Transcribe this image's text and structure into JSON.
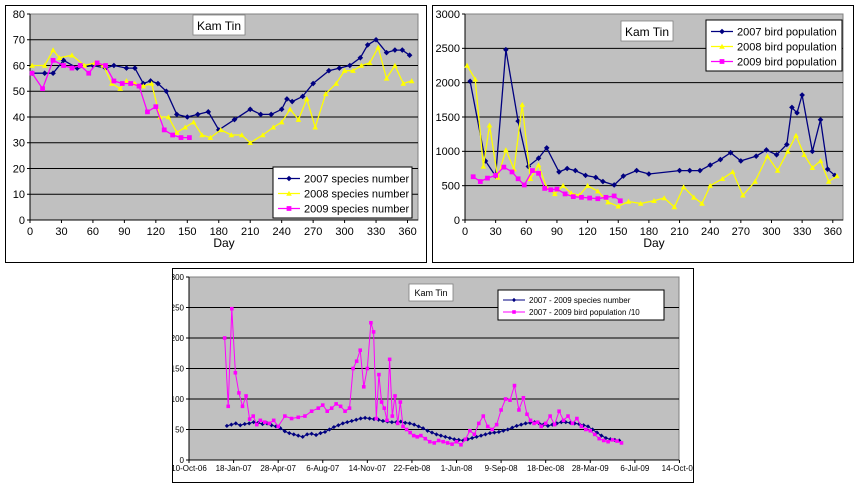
{
  "chart_data": [
    {
      "type": "line",
      "title": "Kam Tin",
      "xlabel": "Day",
      "ylabel": "",
      "xlim": [
        0,
        370
      ],
      "ylim": [
        0,
        80
      ],
      "xticks": [
        0,
        30,
        60,
        90,
        120,
        150,
        180,
        210,
        240,
        270,
        300,
        330,
        360
      ],
      "yticks": [
        0,
        10,
        20,
        30,
        40,
        50,
        60,
        70,
        80
      ],
      "grid": true,
      "legend_position": "bottom-right",
      "series": [
        {
          "name": "2007 species number",
          "color": "#000080",
          "marker": "diamond",
          "x": [
            2,
            14,
            22,
            32,
            45,
            60,
            72,
            80,
            92,
            100,
            108,
            115,
            122,
            130,
            140,
            150,
            160,
            170,
            180,
            195,
            210,
            220,
            230,
            240,
            245,
            250,
            260,
            270,
            285,
            295,
            305,
            315,
            322,
            330,
            340,
            348,
            355,
            362
          ],
          "y": [
            57,
            57,
            57,
            62,
            59,
            60,
            59,
            60,
            59,
            59,
            53,
            54,
            53,
            50,
            41,
            40,
            41,
            42,
            35,
            39,
            43,
            41,
            41,
            43,
            47,
            46,
            48,
            53,
            58,
            59,
            60,
            63,
            68,
            70,
            65,
            66,
            66,
            64
          ]
        },
        {
          "name": "2008 species number",
          "color": "#ffff00",
          "marker": "triangle",
          "x": [
            2,
            14,
            22,
            28,
            40,
            52,
            62,
            70,
            78,
            86,
            92,
            100,
            108,
            116,
            124,
            132,
            140,
            148,
            156,
            164,
            172,
            182,
            192,
            202,
            210,
            222,
            232,
            240,
            248,
            256,
            264,
            272,
            282,
            292,
            300,
            308,
            316,
            324,
            332,
            340,
            348,
            356,
            364
          ],
          "y": [
            60,
            60,
            66,
            63,
            64,
            60,
            61,
            60,
            53,
            51,
            54,
            53,
            52,
            53,
            40,
            40,
            34,
            36,
            38,
            33,
            32,
            35,
            33,
            33,
            30,
            33,
            36,
            38,
            43,
            39,
            47,
            36,
            49,
            53,
            58,
            58,
            60,
            61,
            67,
            55,
            60,
            53,
            54
          ]
        },
        {
          "name": "2009 species number",
          "color": "#ff00ff",
          "marker": "square",
          "x": [
            2,
            12,
            22,
            32,
            40,
            48,
            56,
            64,
            72,
            80,
            88,
            96,
            104,
            112,
            120,
            128,
            136,
            144,
            152
          ],
          "y": [
            57,
            51,
            62,
            60,
            59,
            60,
            57,
            61,
            60,
            54,
            53,
            53,
            52,
            42,
            44,
            35,
            33,
            32,
            32
          ]
        }
      ]
    },
    {
      "type": "line",
      "title": "Kam Tin",
      "xlabel": "Day",
      "ylabel": "",
      "xlim": [
        0,
        370
      ],
      "ylim": [
        0,
        3000
      ],
      "xticks": [
        0,
        30,
        60,
        90,
        120,
        150,
        180,
        210,
        240,
        270,
        300,
        330,
        360
      ],
      "yticks": [
        0,
        500,
        1000,
        1500,
        2000,
        2500,
        3000
      ],
      "grid": true,
      "legend_position": "top-right",
      "series": [
        {
          "name": "2007 bird population",
          "color": "#000080",
          "marker": "diamond",
          "x": [
            5,
            20,
            30,
            40,
            52,
            62,
            72,
            80,
            92,
            100,
            108,
            118,
            128,
            135,
            146,
            155,
            168,
            180,
            210,
            220,
            230,
            240,
            250,
            260,
            270,
            285,
            295,
            305,
            315,
            320,
            325,
            330,
            340,
            348,
            355,
            362
          ],
          "y": [
            2020,
            860,
            640,
            2480,
            1440,
            780,
            900,
            1050,
            700,
            750,
            720,
            650,
            620,
            560,
            510,
            640,
            720,
            670,
            720,
            720,
            720,
            800,
            880,
            980,
            860,
            930,
            1020,
            950,
            1100,
            1640,
            1560,
            1820,
            1000,
            1460,
            740,
            650
          ]
        },
        {
          "name": "2008 bird population",
          "color": "#ffff00",
          "marker": "triangle",
          "x": [
            2,
            10,
            18,
            24,
            32,
            40,
            48,
            56,
            64,
            72,
            80,
            88,
            96,
            104,
            112,
            120,
            130,
            140,
            150,
            160,
            172,
            185,
            195,
            205,
            214,
            224,
            232,
            240,
            252,
            262,
            272,
            284,
            296,
            306,
            316,
            324,
            332,
            340,
            348,
            356,
            364
          ],
          "y": [
            2250,
            2050,
            780,
            1380,
            620,
            1020,
            740,
            1680,
            600,
            800,
            470,
            380,
            500,
            390,
            360,
            500,
            420,
            260,
            200,
            270,
            240,
            280,
            320,
            190,
            480,
            330,
            240,
            500,
            600,
            700,
            360,
            560,
            930,
            720,
            1000,
            1230,
            950,
            760,
            860,
            560,
            640
          ]
        },
        {
          "name": "2009 bird population",
          "color": "#ff00ff",
          "marker": "square",
          "x": [
            8,
            15,
            22,
            30,
            38,
            46,
            52,
            58,
            66,
            72,
            78,
            84,
            90,
            98,
            106,
            114,
            122,
            130,
            138,
            146,
            152
          ],
          "y": [
            630,
            560,
            610,
            650,
            770,
            700,
            600,
            510,
            720,
            680,
            460,
            440,
            450,
            380,
            340,
            330,
            320,
            310,
            330,
            350,
            280
          ]
        }
      ]
    },
    {
      "type": "line",
      "title": "Kam Tin",
      "xlabel": "",
      "ylabel": "",
      "xlim": [
        0,
        1099
      ],
      "ylim": [
        0,
        300
      ],
      "xtick_labels": [
        "10-Oct-06",
        "18-Jan-07",
        "28-Apr-07",
        "6-Aug-07",
        "14-Nov-07",
        "22-Feb-08",
        "1-Jun-08",
        "9-Sep-08",
        "18-Dec-08",
        "28-Mar-09",
        "6-Jul-09",
        "14-Oct-09"
      ],
      "xtick_days": [
        0,
        100,
        200,
        300,
        400,
        500,
        600,
        700,
        800,
        900,
        1000,
        1100
      ],
      "yticks": [
        0,
        50,
        100,
        150,
        200,
        250,
        300
      ],
      "grid": true,
      "legend_position": "top-right",
      "series": [
        {
          "name": "2007 - 2009 species number",
          "color": "#000080",
          "marker": "diamond",
          "x": [
            85,
            95,
            105,
            115,
            125,
            135,
            145,
            155,
            165,
            175,
            185,
            195,
            205,
            215,
            225,
            235,
            245,
            255,
            265,
            275,
            285,
            295,
            305,
            315,
            325,
            335,
            345,
            355,
            365,
            375,
            385,
            395,
            405,
            415,
            425,
            435,
            445,
            455,
            465,
            475,
            485,
            495,
            505,
            515,
            525,
            535,
            545,
            555,
            565,
            575,
            585,
            595,
            605,
            615,
            625,
            635,
            645,
            655,
            665,
            675,
            685,
            695,
            705,
            715,
            725,
            735,
            745,
            755,
            765,
            775,
            785,
            795,
            805,
            815,
            825,
            835,
            845,
            855,
            865,
            875,
            885,
            895,
            905,
            915,
            925,
            935,
            945,
            955,
            965
          ],
          "y": [
            56,
            58,
            60,
            57,
            59,
            60,
            62,
            61,
            59,
            60,
            57,
            55,
            52,
            47,
            44,
            42,
            40,
            38,
            42,
            43,
            41,
            44,
            46,
            50,
            54,
            57,
            60,
            62,
            64,
            66,
            68,
            69,
            68,
            67,
            66,
            64,
            63,
            62,
            62,
            63,
            61,
            60,
            58,
            55,
            52,
            48,
            45,
            42,
            40,
            38,
            36,
            34,
            33,
            32,
            34,
            36,
            38,
            40,
            42,
            44,
            45,
            46,
            48,
            50,
            53,
            56,
            58,
            60,
            61,
            62,
            60,
            58,
            56,
            58,
            60,
            62,
            62,
            61,
            60,
            59,
            57,
            55,
            50,
            45,
            40,
            36,
            34,
            33,
            32
          ]
        },
        {
          "name": "2007 - 2009 bird population /10",
          "color": "#ff00ff",
          "marker": "square",
          "x": [
            80,
            88,
            96,
            104,
            112,
            120,
            128,
            136,
            144,
            152,
            160,
            170,
            180,
            190,
            200,
            215,
            230,
            245,
            260,
            275,
            290,
            300,
            310,
            320,
            330,
            340,
            350,
            360,
            368,
            376,
            384,
            392,
            400,
            408,
            414,
            420,
            426,
            432,
            438,
            444,
            450,
            456,
            462,
            468,
            474,
            480,
            488,
            496,
            504,
            512,
            520,
            530,
            540,
            550,
            560,
            570,
            580,
            590,
            600,
            610,
            620,
            630,
            640,
            650,
            660,
            670,
            680,
            690,
            700,
            710,
            720,
            730,
            740,
            750,
            758,
            766,
            774,
            782,
            790,
            800,
            810,
            820,
            830,
            840,
            850,
            860,
            870,
            880,
            890,
            900,
            910,
            920,
            930,
            940,
            950,
            960,
            970
          ],
          "y": [
            200,
            88,
            248,
            143,
            110,
            88,
            105,
            67,
            72,
            58,
            65,
            62,
            60,
            65,
            55,
            72,
            68,
            70,
            72,
            80,
            85,
            90,
            80,
            85,
            92,
            88,
            80,
            85,
            150,
            162,
            180,
            120,
            150,
            225,
            210,
            68,
            140,
            95,
            85,
            65,
            165,
            72,
            105,
            60,
            95,
            55,
            50,
            45,
            40,
            38,
            40,
            35,
            30,
            28,
            32,
            30,
            28,
            26,
            30,
            25,
            34,
            48,
            42,
            60,
            72,
            55,
            50,
            58,
            82,
            100,
            98,
            122,
            82,
            102,
            75,
            65,
            60,
            62,
            55,
            60,
            72,
            58,
            80,
            65,
            72,
            60,
            68,
            55,
            50,
            48,
            42,
            35,
            32,
            30,
            33,
            31,
            28
          ]
        }
      ]
    }
  ]
}
